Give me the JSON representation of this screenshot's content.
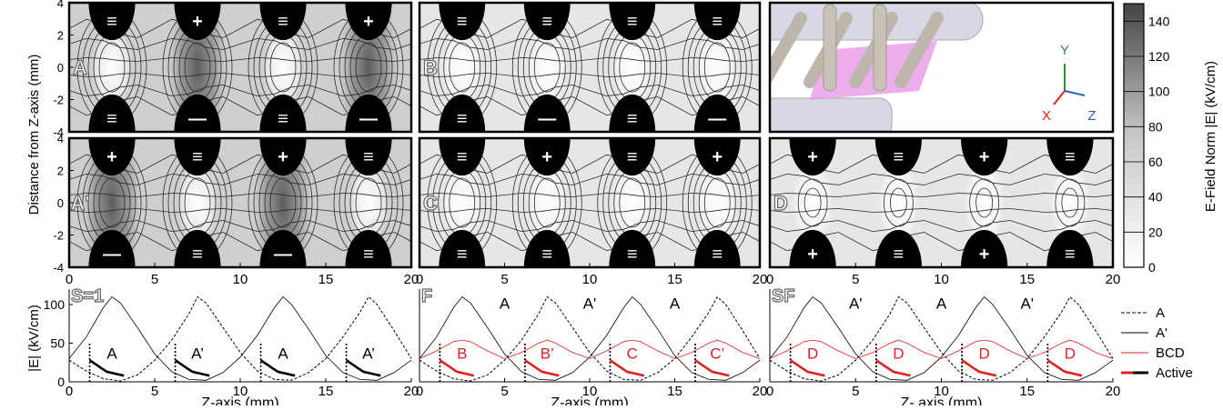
{
  "chart_data": [
    {
      "type": "heatmap",
      "title": "",
      "xlabel": "",
      "ylabel": "Distance from Z-axis (mm)",
      "xlim": [
        0,
        20
      ],
      "ylim": [
        -4,
        4
      ],
      "x_ticks": [
        "0",
        "5",
        "10",
        "15",
        "20"
      ],
      "y_ticks": [
        "4",
        "2",
        "0",
        "-2",
        "-4"
      ],
      "colorbar": {
        "label": "E-Field Norm |E| (kV/cm)",
        "range": [
          0,
          150
        ],
        "ticks": [
          "0",
          "20",
          "40",
          "60",
          "80",
          "100",
          "120",
          "140"
        ],
        "low_color": "#ffffff",
        "high_color": "#444444"
      },
      "panels": [
        {
          "label": "A",
          "electrode_centers": [
            2.5,
            7.5,
            12.5,
            17.5
          ],
          "top": [
            "≡",
            "+",
            "≡",
            "+"
          ],
          "bottom": [
            "≡",
            "—",
            "≡",
            "—"
          ],
          "strong_gaps": [
            1,
            3
          ]
        },
        {
          "label": "B",
          "electrode_centers": [
            2.5,
            7.5,
            12.5,
            17.5
          ],
          "top": [
            "≡",
            "≡",
            "≡",
            "≡"
          ],
          "bottom": [
            "≡",
            "—",
            "≡",
            "—"
          ],
          "strong_gaps": []
        },
        {
          "label": "A'",
          "electrode_centers": [
            2.5,
            7.5,
            12.5,
            17.5
          ],
          "top": [
            "+",
            "≡",
            "+",
            "≡"
          ],
          "bottom": [
            "—",
            "≡",
            "—",
            "≡"
          ],
          "strong_gaps": [
            0,
            2
          ]
        },
        {
          "label": "C",
          "electrode_centers": [
            2.5,
            7.5,
            12.5,
            17.5
          ],
          "top": [
            "≡",
            "+",
            "≡",
            "+"
          ],
          "bottom": [
            "≡",
            "≡",
            "≡",
            "≡"
          ],
          "strong_gaps": []
        },
        {
          "label": "D",
          "electrode_centers": [
            2.5,
            7.5,
            12.5,
            17.5
          ],
          "top": [
            "+",
            "≡",
            "+",
            "≡"
          ],
          "bottom": [
            "+",
            "≡",
            "+",
            "≡"
          ],
          "strong_gaps": []
        }
      ]
    },
    {
      "type": "line",
      "xlabel": "Z-axis (mm)",
      "ylabel": "|E| (kV/cm)",
      "xlim": [
        0,
        20
      ],
      "ylim": [
        0,
        120
      ],
      "x_ticks": [
        "0",
        "5",
        "10",
        "15",
        "20"
      ],
      "y_ticks": [
        "0",
        "50",
        "100"
      ],
      "legend": {
        "placement": "right",
        "entries": [
          {
            "name": "A",
            "style": "dashed"
          },
          {
            "name": "A'",
            "style": "solid-thin"
          },
          {
            "name": "BCD",
            "style": "red-thin"
          },
          {
            "name": "Active",
            "style": "thick"
          }
        ]
      },
      "series": [
        {
          "name": "A",
          "x": [
            0,
            1,
            2,
            3,
            4,
            5,
            6,
            7,
            7.5,
            8,
            9,
            10,
            11,
            12,
            13,
            14,
            15,
            16,
            17,
            17.5,
            18,
            19,
            20
          ],
          "values": [
            28,
            14,
            4,
            1,
            9,
            28,
            54,
            88,
            110,
            102,
            70,
            38,
            14,
            3,
            2,
            12,
            30,
            58,
            90,
            110,
            100,
            66,
            30
          ]
        },
        {
          "name": "A'",
          "x": [
            0,
            1,
            2,
            2.5,
            3,
            4,
            5,
            6,
            7,
            8,
            9,
            10,
            11,
            12,
            12.5,
            13,
            14,
            15,
            16,
            17,
            18,
            19,
            20
          ],
          "values": [
            30,
            58,
            96,
            110,
            102,
            70,
            36,
            13,
            3,
            2,
            12,
            32,
            60,
            96,
            110,
            100,
            68,
            34,
            12,
            3,
            2,
            12,
            28
          ]
        },
        {
          "name": "BCD",
          "x": [
            0,
            1,
            2,
            2.5,
            3,
            4,
            5,
            6,
            7,
            7.5,
            8,
            9,
            10,
            11,
            12,
            12.5,
            13,
            14,
            15,
            16,
            17,
            17.5,
            18,
            19,
            20
          ],
          "values": [
            30,
            40,
            52,
            54,
            52,
            40,
            30,
            38,
            50,
            54,
            50,
            38,
            30,
            40,
            52,
            54,
            52,
            40,
            30,
            38,
            50,
            54,
            50,
            38,
            30
          ]
        }
      ],
      "subpanels": [
        {
          "tag": "S=1",
          "regions": [
            {
              "text": "A",
              "x": 2.5,
              "color": "black"
            },
            {
              "text": "A’",
              "x": 7.5,
              "color": "black"
            },
            {
              "text": "A",
              "x": 12.5,
              "color": "black"
            },
            {
              "text": "A’",
              "x": 17.5,
              "color": "black"
            }
          ],
          "top_labels": []
        },
        {
          "tag": "F",
          "regions": [
            {
              "text": "B",
              "x": 2.5,
              "color": "red"
            },
            {
              "text": "B’",
              "x": 7.5,
              "color": "red"
            },
            {
              "text": "C",
              "x": 12.5,
              "color": "red"
            },
            {
              "text": "C’",
              "x": 17.5,
              "color": "red"
            }
          ],
          "top_labels": [
            {
              "text": "A",
              "x": 5
            },
            {
              "text": "A'",
              "x": 10
            },
            {
              "text": "A",
              "x": 15
            }
          ]
        },
        {
          "tag": "SF",
          "regions": [
            {
              "text": "D",
              "x": 2.5,
              "color": "red"
            },
            {
              "text": "D",
              "x": 7.5,
              "color": "red"
            },
            {
              "text": "D",
              "x": 12.5,
              "color": "red"
            },
            {
              "text": "D",
              "x": 17.5,
              "color": "red"
            }
          ],
          "top_labels": [
            {
              "text": "A'",
              "x": 5
            },
            {
              "text": "A",
              "x": 10
            },
            {
              "text": "A'",
              "x": 15
            }
          ]
        }
      ],
      "panel_xlabels": [
        "Z-axis (mm)",
        "Z-axis (mm)",
        "Z- axis (mm)"
      ]
    }
  ],
  "inset_3d": {
    "axes": [
      {
        "name": "Y",
        "color": "#3a8a3a"
      },
      {
        "name": "X",
        "color": "#e02020"
      },
      {
        "name": "Z",
        "color": "#3060b0"
      }
    ]
  }
}
